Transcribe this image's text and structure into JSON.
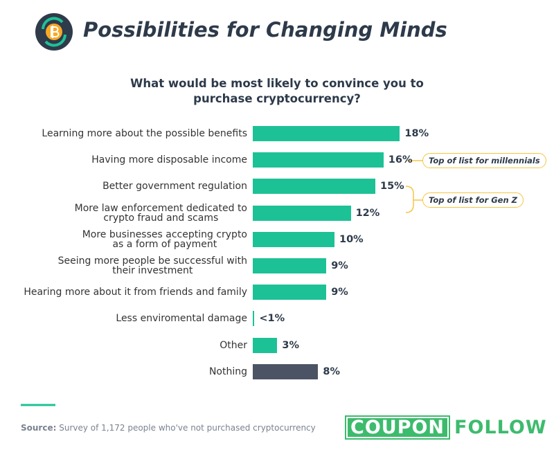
{
  "header": {
    "title": "Possibilities for Changing Minds"
  },
  "chart_data": {
    "type": "bar",
    "orientation": "horizontal",
    "title": "What would be most likely to convince you to purchase cryptocurrency?",
    "categories": [
      "Learning more about the possible benefits",
      "Having more disposable income",
      "Better government regulation",
      "More law enforcement dedicated to\ncrypto fraud and scams",
      "More businesses accepting crypto\nas a form of payment",
      "Seeing more people be successful with\ntheir investment",
      "Hearing more about it from friends and family",
      "Less enviromental damage",
      "Other",
      "Nothing"
    ],
    "values": [
      18,
      16,
      15,
      12,
      10,
      9,
      9,
      0.2,
      3,
      8
    ],
    "value_labels": [
      "18%",
      "16%",
      "15%",
      "12%",
      "10%",
      "9%",
      "9%",
      "<1%",
      "3%",
      "8%"
    ],
    "colors": [
      "#1dc196",
      "#1dc196",
      "#1dc196",
      "#1dc196",
      "#1dc196",
      "#1dc196",
      "#1dc196",
      "#1dc196",
      "#1dc196",
      "#4b5364"
    ],
    "annotations": [
      "Top of list for millennials",
      "Top of list for Gen Z"
    ]
  },
  "footer": {
    "source_label": "Source:",
    "source": "Survey of 1,172 people who've not purchased cryptocurrency",
    "logo": [
      "COUPON",
      "FOLLOW"
    ]
  }
}
